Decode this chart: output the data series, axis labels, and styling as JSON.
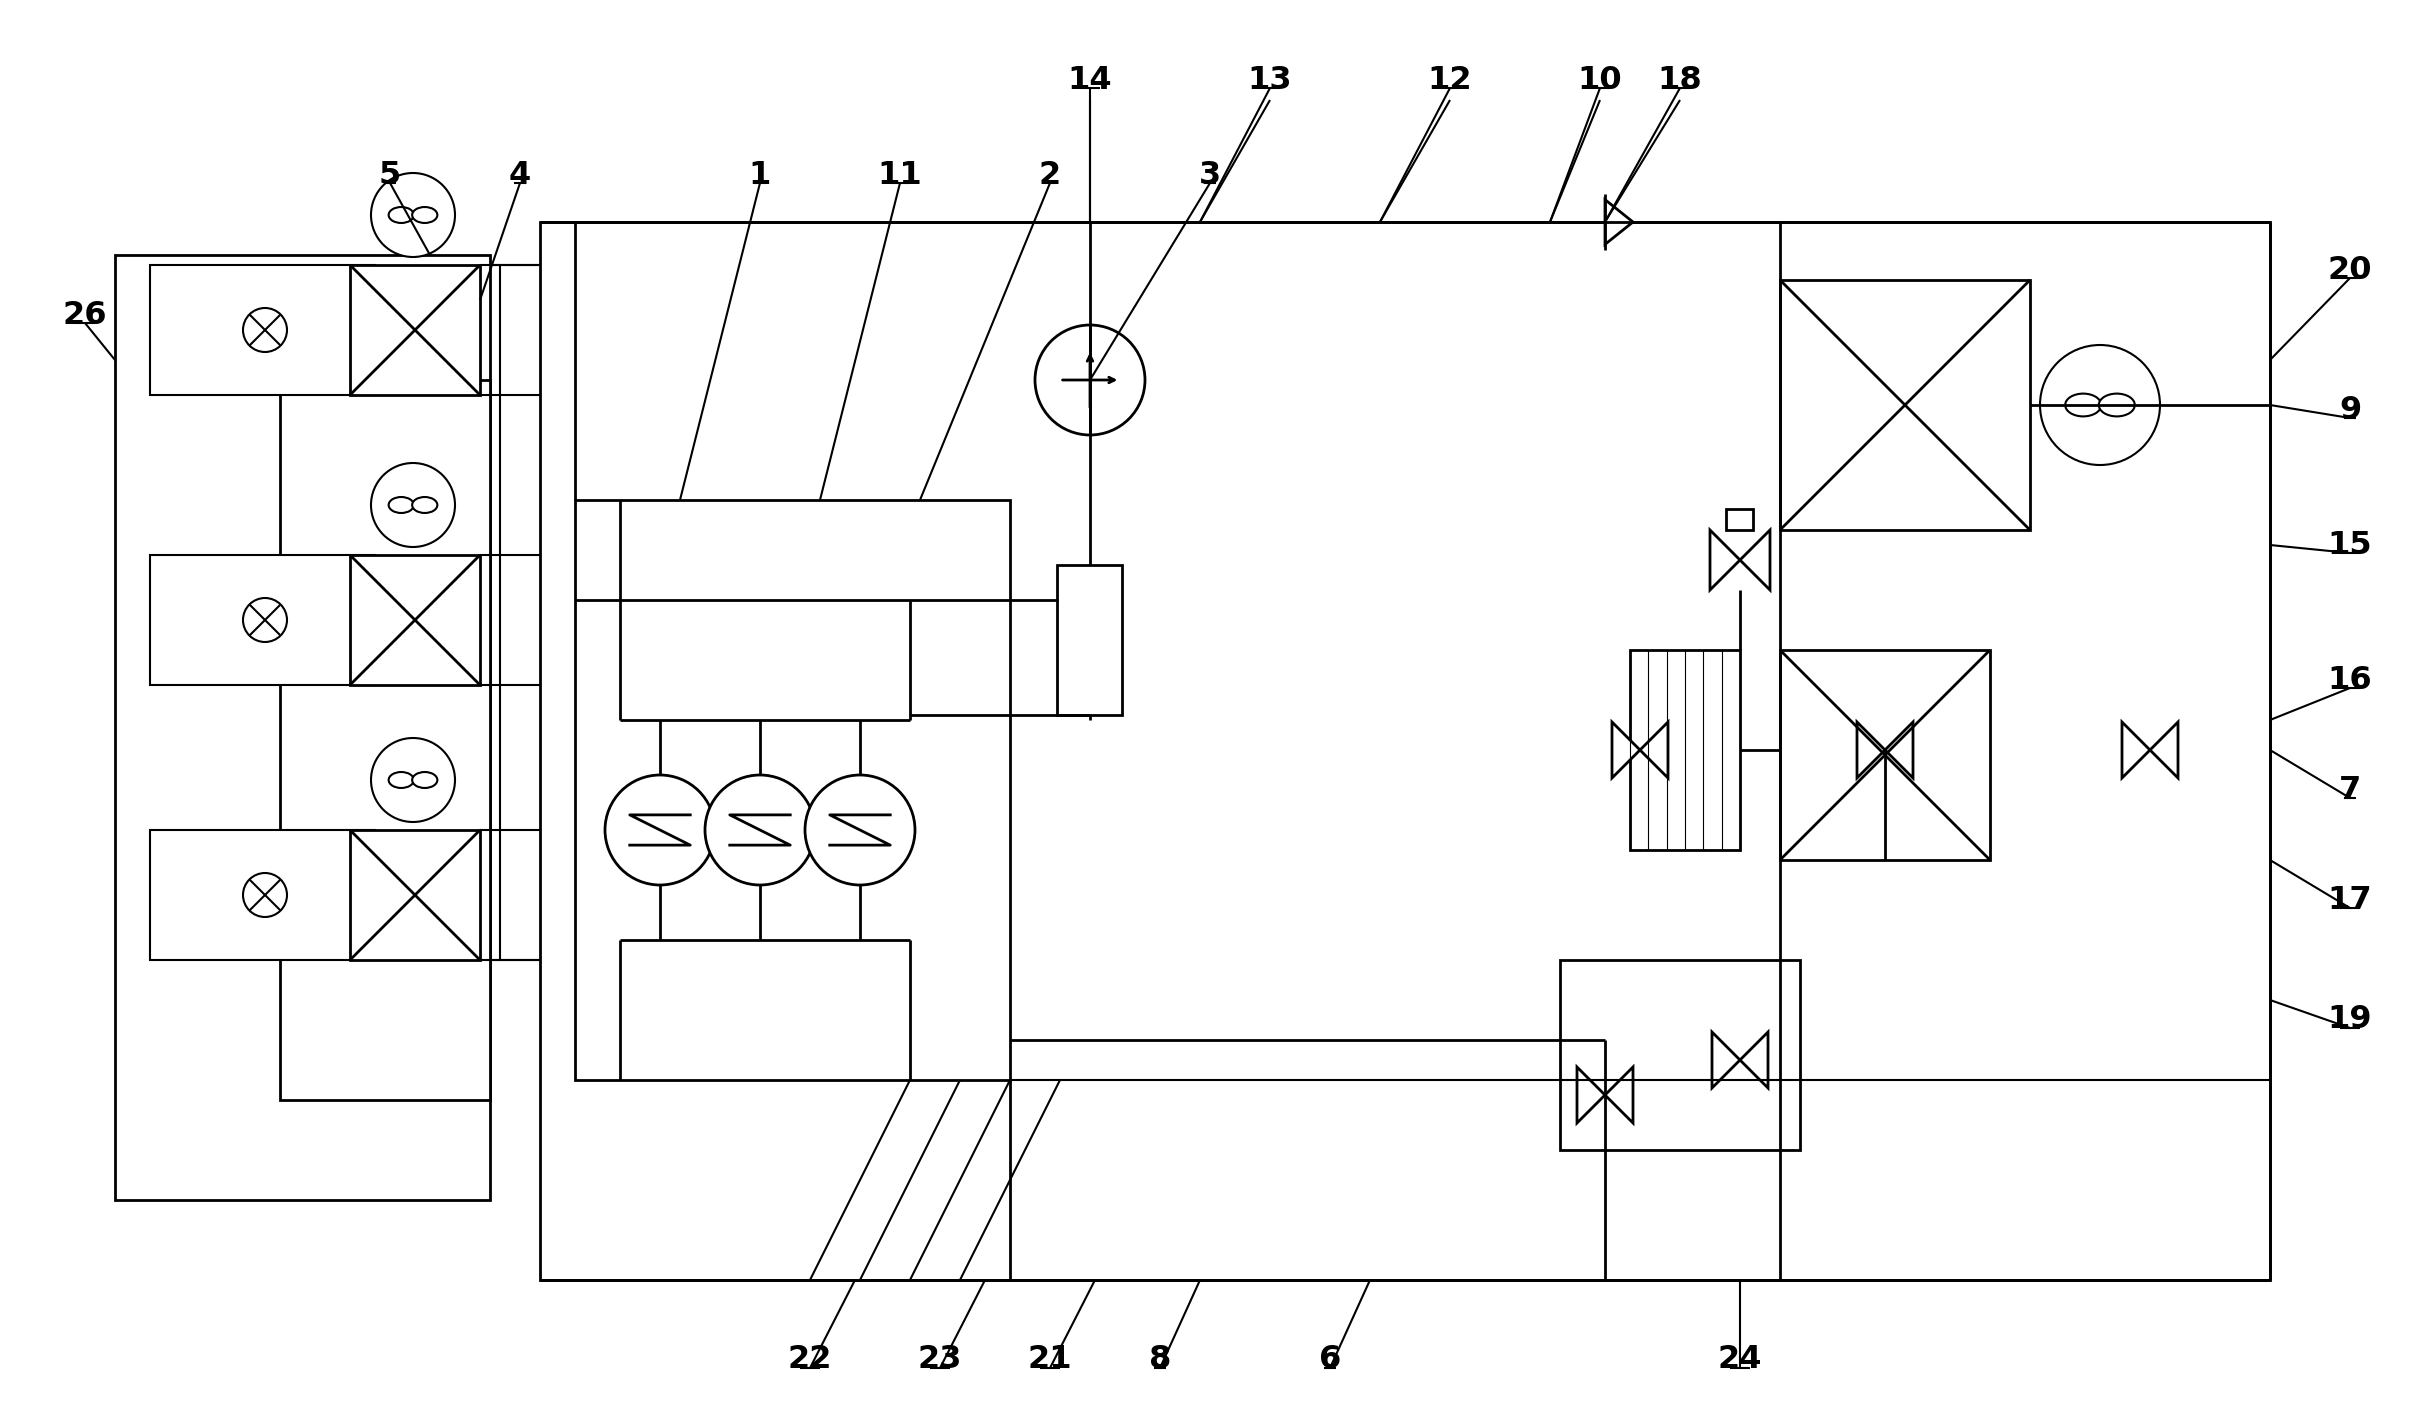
{
  "bg_color": "#ffffff",
  "lc": "#000000",
  "lw": 2.0,
  "tlw": 1.5,
  "fig_width": 24.16,
  "fig_height": 14.28
}
